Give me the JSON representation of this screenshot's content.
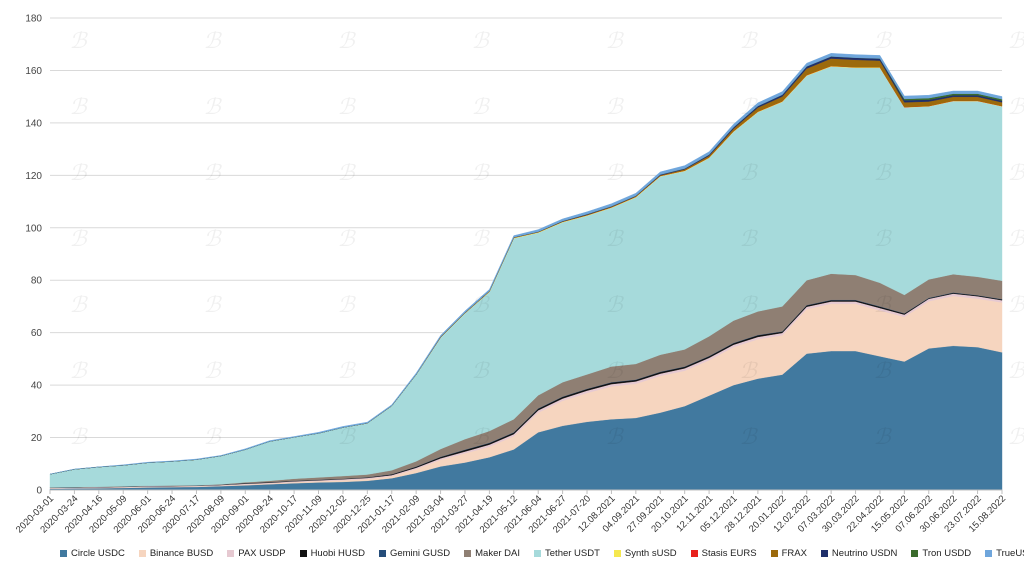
{
  "chart_data": {
    "type": "area",
    "stacked": true,
    "title": "",
    "xlabel": "",
    "ylabel": "",
    "ylim": [
      0,
      180
    ],
    "yticks": [
      0,
      20,
      40,
      60,
      80,
      100,
      120,
      140,
      160,
      180
    ],
    "grid": true,
    "legend_position": "bottom",
    "xtick_labels": [
      "2020-03-01",
      "2020-03-24",
      "2020-04-16",
      "2020-05-09",
      "2020-06-01",
      "2020-06-24",
      "2020-07-17",
      "2020-08-09",
      "2020-09-01",
      "2020-09-24",
      "2020-10-17",
      "2020-11-09",
      "2020-12-02",
      "2020-12-25",
      "2021-01-17",
      "2021-02-09",
      "2021-03-04",
      "2021-03-27",
      "2021-04-19",
      "2021-05-12",
      "2021-06-04",
      "2021-06-27",
      "2021-07-20",
      "12.08.2021",
      "04.09.2021",
      "27.09.2021",
      "20.10.2021",
      "12.11.2021",
      "05.12.2021",
      "28.12.2021",
      "20.01.2022",
      "12.02.2022",
      "07.03.2022",
      "30.03.2022",
      "22.04.2022",
      "15.05.2022",
      "07.06.2022",
      "30.06.2022",
      "23.07.2022",
      "15.08.2022"
    ],
    "series": [
      {
        "name": "Circle USDC",
        "color": "#41799F",
        "values": [
          0.5,
          0.6,
          0.7,
          0.8,
          1.0,
          1.1,
          1.2,
          1.5,
          1.8,
          2.2,
          2.6,
          2.9,
          3.1,
          3.5,
          4.5,
          6.5,
          9.0,
          10.5,
          12.5,
          15.5,
          22.0,
          24.5,
          26.0,
          27.0,
          27.5,
          29.5,
          32.0,
          36.0,
          40.0,
          42.5,
          44.0,
          52.0,
          53.0,
          53.0,
          51.0,
          49.0,
          54.0,
          55.0,
          54.5,
          52.5
        ]
      },
      {
        "name": "Binance BUSD",
        "color": "#F6D5BF",
        "values": [
          0.1,
          0.1,
          0.15,
          0.2,
          0.2,
          0.2,
          0.2,
          0.2,
          0.3,
          0.3,
          0.4,
          0.5,
          0.6,
          0.7,
          0.8,
          1.5,
          2.5,
          3.5,
          4.0,
          5.0,
          7.5,
          9.5,
          11.0,
          12.5,
          13.0,
          14.0,
          13.5,
          13.5,
          14.5,
          15.0,
          15.0,
          17.0,
          18.0,
          18.0,
          17.5,
          17.0,
          18.0,
          19.0,
          18.5,
          19.0
        ]
      },
      {
        "name": "PAX USDP",
        "color": "#E6C9D1",
        "values": [
          0.2,
          0.2,
          0.2,
          0.2,
          0.2,
          0.2,
          0.2,
          0.2,
          0.3,
          0.3,
          0.3,
          0.3,
          0.4,
          0.4,
          0.4,
          0.5,
          0.6,
          0.7,
          0.8,
          0.8,
          0.9,
          0.9,
          0.9,
          0.9,
          0.9,
          0.9,
          0.9,
          0.9,
          0.9,
          0.9,
          0.9,
          0.9,
          0.9,
          0.9,
          0.9,
          0.9,
          0.9,
          0.9,
          0.9,
          0.9
        ]
      },
      {
        "name": "Huobi HUSD",
        "color": "#111111",
        "values": [
          0.1,
          0.1,
          0.1,
          0.1,
          0.1,
          0.1,
          0.1,
          0.1,
          0.2,
          0.2,
          0.2,
          0.2,
          0.2,
          0.2,
          0.3,
          0.4,
          0.5,
          0.6,
          0.6,
          0.6,
          0.6,
          0.6,
          0.6,
          0.6,
          0.6,
          0.6,
          0.6,
          0.6,
          0.6,
          0.6,
          0.5,
          0.5,
          0.5,
          0.5,
          0.5,
          0.4,
          0.3,
          0.3,
          0.3,
          0.3
        ]
      },
      {
        "name": "Gemini GUSD",
        "color": "#254D7A",
        "values": [
          0.01,
          0.01,
          0.01,
          0.01,
          0.01,
          0.01,
          0.01,
          0.01,
          0.02,
          0.02,
          0.02,
          0.02,
          0.02,
          0.03,
          0.03,
          0.05,
          0.05,
          0.1,
          0.1,
          0.1,
          0.1,
          0.1,
          0.1,
          0.1,
          0.1,
          0.1,
          0.1,
          0.1,
          0.1,
          0.1,
          0.1,
          0.1,
          0.1,
          0.1,
          0.1,
          0.1,
          0.1,
          0.1,
          0.1,
          0.1
        ]
      },
      {
        "name": "Maker DAI",
        "color": "#8F7F73",
        "values": [
          0.1,
          0.1,
          0.1,
          0.1,
          0.1,
          0.1,
          0.1,
          0.2,
          0.3,
          0.5,
          0.8,
          0.9,
          1.0,
          1.1,
          1.5,
          2.0,
          3.0,
          4.0,
          4.5,
          5.0,
          5.0,
          5.5,
          5.5,
          6.0,
          6.0,
          6.5,
          6.5,
          7.5,
          8.5,
          9.0,
          9.5,
          9.5,
          10.0,
          9.5,
          9.0,
          7.0,
          7.0,
          7.0,
          7.0,
          7.0
        ]
      },
      {
        "name": "Tether USDT",
        "color": "#A6DADB",
        "values": [
          5.0,
          6.8,
          7.5,
          8.0,
          8.8,
          9.2,
          9.8,
          10.8,
          12.5,
          15.0,
          15.8,
          16.8,
          18.5,
          19.5,
          24.5,
          33.0,
          42.5,
          48.0,
          53.0,
          69.0,
          62.0,
          61.0,
          60.5,
          60.5,
          63.5,
          68.0,
          68.0,
          68.0,
          72.0,
          76.0,
          78.0,
          78.0,
          79.0,
          79.0,
          82.0,
          71.5,
          66.0,
          66.0,
          67.0,
          66.5
        ]
      },
      {
        "name": "Synth sUSD",
        "color": "#F5E84F",
        "values": [
          0,
          0,
          0,
          0,
          0,
          0,
          0,
          0,
          0,
          0,
          0,
          0,
          0,
          0.05,
          0.05,
          0.1,
          0.1,
          0.1,
          0.2,
          0.2,
          0.2,
          0.2,
          0.2,
          0.2,
          0.2,
          0.2,
          0.2,
          0.2,
          0.2,
          0.2,
          0.2,
          0.2,
          0.2,
          0.2,
          0.2,
          0.1,
          0.1,
          0.1,
          0.1,
          0.1
        ]
      },
      {
        "name": "Stasis EURS",
        "color": "#E8211C",
        "values": [
          0,
          0,
          0,
          0,
          0,
          0,
          0,
          0,
          0,
          0,
          0,
          0,
          0,
          0,
          0,
          0,
          0,
          0,
          0,
          0,
          0,
          0,
          0,
          0,
          0,
          0,
          0,
          0,
          0,
          0.05,
          0.05,
          0.05,
          0.05,
          0.05,
          0.05,
          0.05,
          0.05,
          0.05,
          0.05,
          0.05
        ]
      },
      {
        "name": "FRAX",
        "color": "#9C6A0C",
        "values": [
          0,
          0,
          0,
          0,
          0,
          0,
          0,
          0,
          0,
          0,
          0,
          0,
          0,
          0,
          0,
          0,
          0.1,
          0.1,
          0.1,
          0.1,
          0.1,
          0.1,
          0.2,
          0.2,
          0.2,
          0.2,
          0.5,
          0.7,
          1.0,
          1.5,
          1.8,
          2.5,
          2.8,
          2.8,
          2.5,
          1.8,
          1.7,
          1.5,
          1.5,
          1.4
        ]
      },
      {
        "name": "Neutrino USDN",
        "color": "#1F2F6B",
        "values": [
          0,
          0,
          0,
          0,
          0,
          0,
          0,
          0,
          0,
          0,
          0,
          0,
          0.02,
          0.02,
          0.02,
          0.05,
          0.1,
          0.1,
          0.1,
          0.1,
          0.1,
          0.2,
          0.2,
          0.2,
          0.2,
          0.3,
          0.3,
          0.4,
          0.5,
          0.6,
          0.7,
          0.8,
          0.8,
          0.8,
          0.8,
          0.8,
          0.7,
          0.6,
          0.6,
          0.6
        ]
      },
      {
        "name": "Tron USDD",
        "color": "#3A6B2C",
        "values": [
          0,
          0,
          0,
          0,
          0,
          0,
          0,
          0,
          0,
          0,
          0,
          0,
          0,
          0,
          0,
          0,
          0,
          0,
          0,
          0,
          0,
          0,
          0,
          0,
          0,
          0,
          0,
          0,
          0,
          0,
          0,
          0,
          0,
          0,
          0,
          0.5,
          0.6,
          0.6,
          0.6,
          0.6
        ]
      },
      {
        "name": "TrueUSD",
        "color": "#6FA6DC",
        "values": [
          0.1,
          0.1,
          0.1,
          0.2,
          0.2,
          0.2,
          0.2,
          0.2,
          0.3,
          0.3,
          0.3,
          0.4,
          0.4,
          0.4,
          0.4,
          0.5,
          0.5,
          0.6,
          0.6,
          0.6,
          0.8,
          0.8,
          0.9,
          1.0,
          1.0,
          1.0,
          1.1,
          1.1,
          1.2,
          1.2,
          1.2,
          1.2,
          1.2,
          1.2,
          1.2,
          1.1,
          1.1,
          1.0,
          1.0,
          1.0
        ]
      }
    ]
  },
  "watermark": {
    "glyph": "ℬ"
  }
}
